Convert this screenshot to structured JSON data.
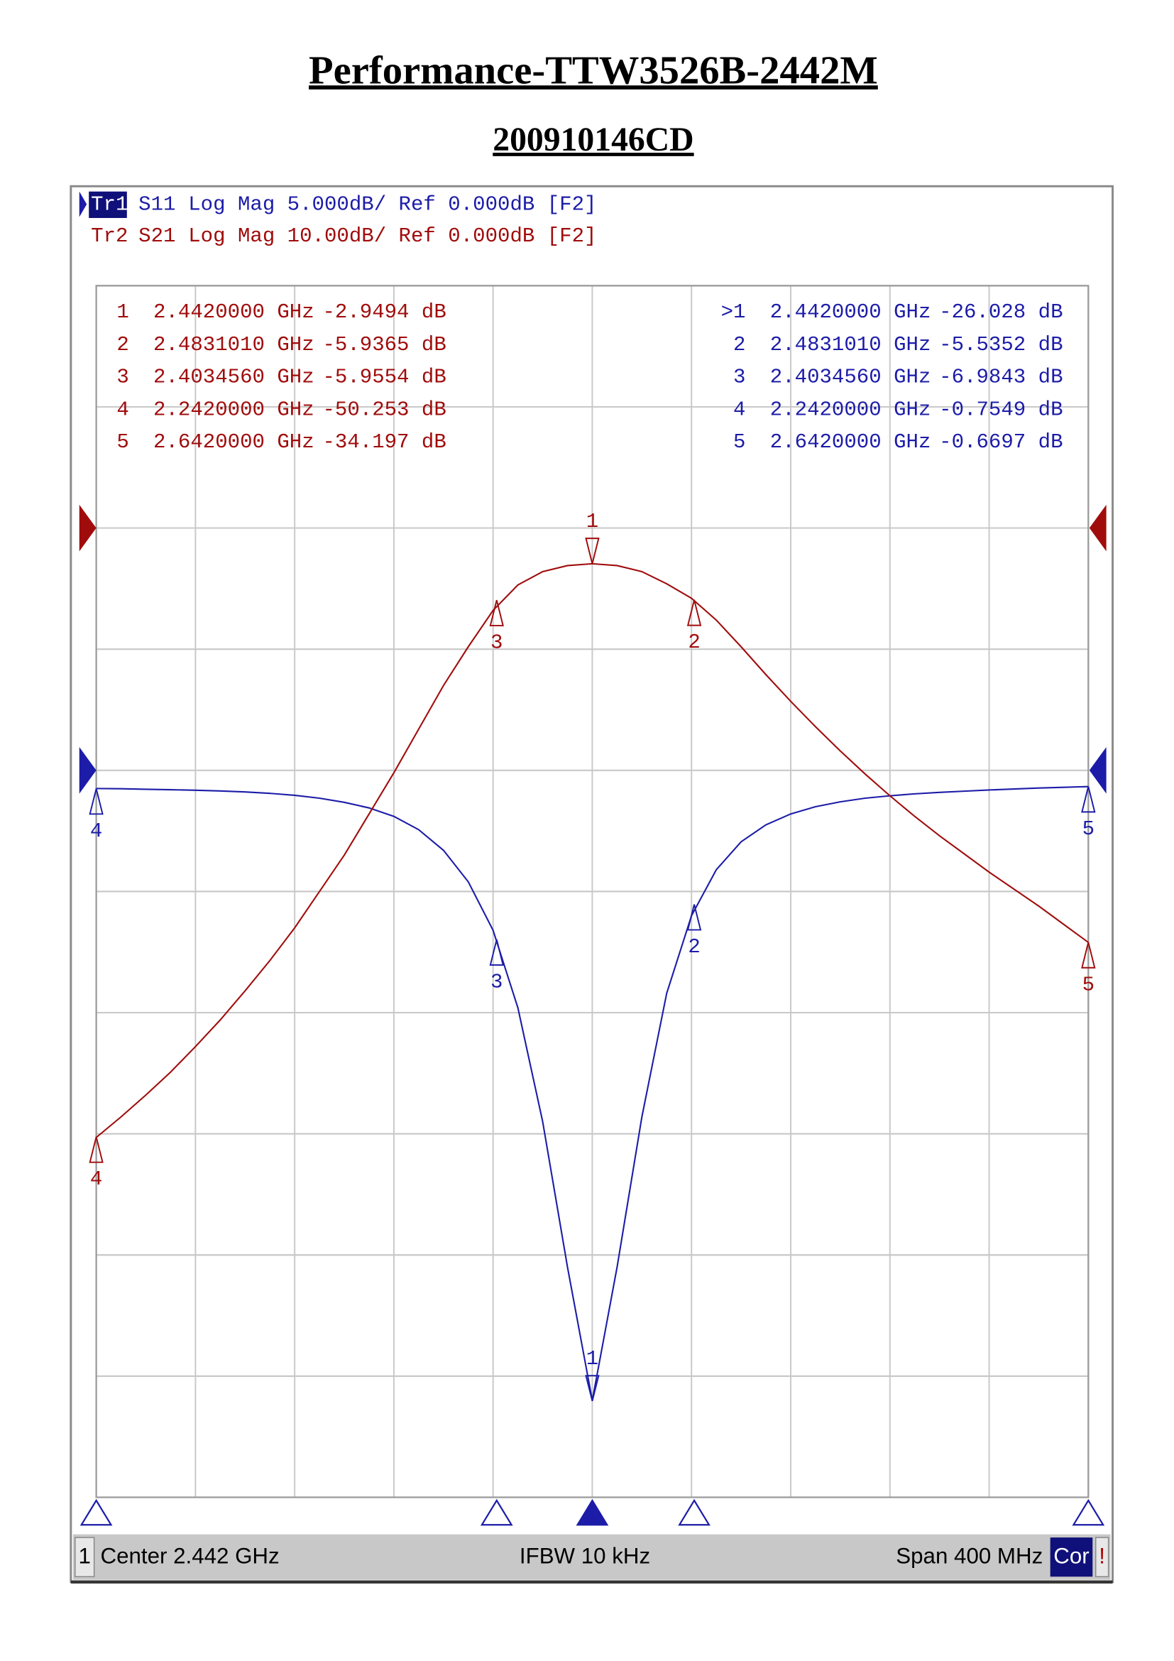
{
  "document": {
    "title": "Performance-TTW3526B-2442M",
    "subtitle": "200910146CD"
  },
  "chart_data": {
    "type": "line",
    "x": [
      2.242,
      2.252,
      2.262,
      2.272,
      2.282,
      2.292,
      2.302,
      2.312,
      2.322,
      2.332,
      2.342,
      2.352,
      2.362,
      2.372,
      2.382,
      2.392,
      2.402,
      2.412,
      2.422,
      2.432,
      2.442,
      2.452,
      2.462,
      2.472,
      2.482,
      2.492,
      2.502,
      2.512,
      2.522,
      2.532,
      2.542,
      2.552,
      2.562,
      2.572,
      2.582,
      2.592,
      2.602,
      2.612,
      2.622,
      2.632,
      2.642
    ],
    "xlim": [
      2.242,
      2.642
    ],
    "xticks": [
      2.242,
      2.282,
      2.322,
      2.362,
      2.402,
      2.442,
      2.482,
      2.522,
      2.562,
      2.602,
      2.642
    ],
    "ylim": [
      -30,
      20
    ],
    "yticks": [
      -30,
      -25,
      -20,
      -15,
      -10,
      -5,
      0,
      5,
      10,
      15,
      20
    ],
    "y2lim": [
      -80,
      20
    ],
    "y2ticks": [
      -80,
      -70,
      -60,
      -50,
      -40,
      -30,
      -20,
      -10,
      0,
      10,
      20
    ],
    "grid": true,
    "series": [
      {
        "trace": "Tr1",
        "name": "S11",
        "format": "Log Mag 5.000dB/ Ref 0.000dB [F2]",
        "color": "#1c1ca8",
        "axis": "y",
        "ref_value": 0,
        "values": [
          -0.75,
          -0.76,
          -0.78,
          -0.8,
          -0.82,
          -0.85,
          -0.89,
          -0.95,
          -1.03,
          -1.15,
          -1.32,
          -1.55,
          -1.9,
          -2.45,
          -3.3,
          -4.6,
          -6.6,
          -9.8,
          -14.5,
          -20.5,
          -26.0,
          -20.5,
          -14.3,
          -9.2,
          -6.0,
          -4.1,
          -2.95,
          -2.25,
          -1.8,
          -1.5,
          -1.3,
          -1.15,
          -1.05,
          -0.97,
          -0.91,
          -0.86,
          -0.81,
          -0.77,
          -0.73,
          -0.7,
          -0.67
        ],
        "markers": {
          "names": [
            ">1",
            "2",
            "3",
            "4",
            "5"
          ],
          "tags": [
            "1",
            "2",
            "3",
            "4",
            "5"
          ],
          "x": [
            2.442,
            2.483101,
            2.403456,
            2.242,
            2.642
          ],
          "x_labels": [
            "2.4420000 GHz",
            "2.4831010 GHz",
            "2.4034560 GHz",
            "2.2420000 GHz",
            "2.6420000 GHz"
          ],
          "values": [
            -26.028,
            -5.5352,
            -6.9843,
            -0.7549,
            -0.6697
          ],
          "value_labels": [
            "-26.028 dB",
            "-5.5352 dB",
            "-6.9843 dB",
            "-0.7549 dB",
            "-0.6697 dB"
          ]
        }
      },
      {
        "trace": "Tr2",
        "name": "S21",
        "format": "Log Mag 10.00dB/ Ref 0.000dB [F2]",
        "color": "#a00c0c",
        "axis": "y2",
        "ref_value": 0,
        "values": [
          -50.3,
          -48.6,
          -46.8,
          -44.9,
          -42.8,
          -40.6,
          -38.2,
          -35.7,
          -33.0,
          -30.0,
          -27.0,
          -23.6,
          -20.2,
          -16.6,
          -13.0,
          -9.8,
          -6.8,
          -4.7,
          -3.6,
          -3.1,
          -2.95,
          -3.1,
          -3.6,
          -4.6,
          -5.8,
          -7.6,
          -9.8,
          -12.1,
          -14.3,
          -16.4,
          -18.4,
          -20.3,
          -22.1,
          -23.8,
          -25.4,
          -26.9,
          -28.4,
          -29.8,
          -31.2,
          -32.7,
          -34.2
        ],
        "markers": {
          "names": [
            "1",
            "2",
            "3",
            "4",
            "5"
          ],
          "tags": [
            "1",
            "2",
            "3",
            "4",
            "5"
          ],
          "x": [
            2.442,
            2.483101,
            2.403456,
            2.242,
            2.642
          ],
          "x_labels": [
            "2.4420000 GHz",
            "2.4831010 GHz",
            "2.4034560 GHz",
            "2.2420000 GHz",
            "2.6420000 GHz"
          ],
          "values": [
            -2.9494,
            -5.9365,
            -5.9554,
            -50.253,
            -34.197
          ],
          "value_labels": [
            "-2.9494 dB",
            "-5.9365 dB",
            "-5.9554 dB",
            "-50.253 dB",
            "-34.197 dB"
          ]
        }
      }
    ],
    "status_bar": {
      "channel": "1",
      "center": "Center 2.442 GHz",
      "ifbw": "IFBW 10 kHz",
      "span": "Span 400 MHz",
      "correction": "Cor",
      "flag": "!"
    }
  }
}
